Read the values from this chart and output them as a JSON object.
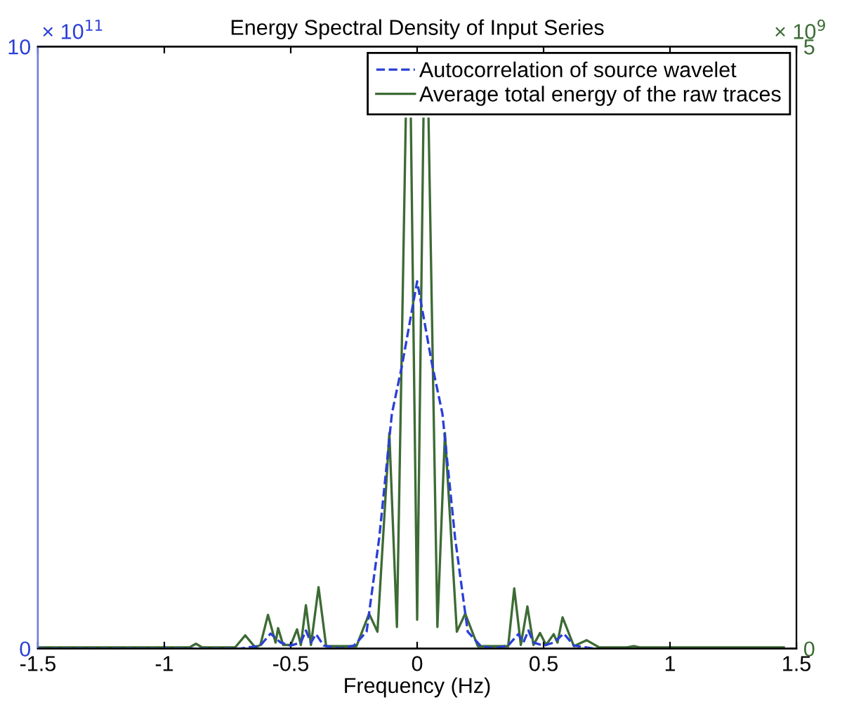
{
  "chart_data": {
    "type": "line",
    "title": "Energy Spectral Density of Input Series",
    "xlabel": "Frequency (Hz)",
    "xlim": [
      -1.5,
      1.5
    ],
    "xticks": [
      -1.5,
      -1,
      -0.5,
      0,
      0.5,
      1,
      1.5
    ],
    "ylim": [
      0,
      10
    ],
    "yticks": [
      0,
      10
    ],
    "y2lim": [
      0,
      5
    ],
    "y2ticks": [
      0,
      5
    ],
    "annotations": [
      "× 10$^{11}$",
      "× 10$^{9}$"
    ],
    "legend": "top right",
    "grid": false,
    "series": [
      {
        "name": "Autocorrelation of source wavelet",
        "color": "#2a3fd6",
        "line_style": "dashed",
        "x": [
          -1.5,
          -0.7,
          -0.62,
          -0.58,
          -0.54,
          -0.5,
          -0.46,
          -0.44,
          -0.42,
          -0.4,
          -0.37,
          -0.3,
          -0.25,
          -0.2,
          -0.15,
          -0.1,
          -0.06,
          0,
          0.06,
          0.1,
          0.15,
          0.2,
          0.25,
          0.3,
          0.36,
          0.4,
          0.42,
          0.44,
          0.46,
          0.5,
          0.54,
          0.58,
          0.62,
          0.7
        ],
        "values": [
          0,
          0,
          0.05,
          0.25,
          0.1,
          0.05,
          0.1,
          0.3,
          0.1,
          0.24,
          0.05,
          0,
          0.05,
          0.28,
          1.84,
          3.9,
          4.7,
          6.1,
          4.7,
          3.9,
          1.84,
          0.28,
          0.05,
          0,
          0.05,
          0.24,
          0.1,
          0.3,
          0.1,
          0.05,
          0.1,
          0.25,
          0.05,
          0
        ]
      },
      {
        "name": "Average total energy of the raw traces",
        "color": "#3d6b35",
        "line_style": "solid",
        "axis": "y2",
        "x": [
          -1.5,
          -0.9,
          -0.875,
          -0.85,
          -0.72,
          -0.68,
          -0.64,
          -0.62,
          -0.59,
          -0.56,
          -0.55,
          -0.53,
          -0.5,
          -0.475,
          -0.46,
          -0.44,
          -0.42,
          -0.39,
          -0.36,
          -0.3,
          -0.24,
          -0.19,
          -0.157,
          -0.11,
          -0.08,
          -0.045,
          -0.035,
          -0.025,
          0,
          0.025,
          0.035,
          0.045,
          0.08,
          0.11,
          0.157,
          0.19,
          0.24,
          0.3,
          0.36,
          0.384,
          0.41,
          0.436,
          0.46,
          0.486,
          0.51,
          0.54,
          0.555,
          0.575,
          0.62,
          0.67,
          0.72,
          0.83,
          0.857,
          0.88,
          1.45
        ],
        "values": [
          0.01,
          0.01,
          0.04,
          0.01,
          0.01,
          0.11,
          0.01,
          0.03,
          0.28,
          0.05,
          0.17,
          0.03,
          0.03,
          0.16,
          0.03,
          0.36,
          0.03,
          0.51,
          0.02,
          0.02,
          0.02,
          0.29,
          0.14,
          1.79,
          0.18,
          4.4,
          null,
          4.4,
          0.24,
          4.4,
          null,
          4.4,
          0.18,
          1.79,
          0.14,
          0.29,
          0.02,
          0.02,
          0.02,
          0.5,
          0.03,
          0.35,
          0.03,
          0.13,
          0.03,
          0.12,
          0.05,
          0.26,
          0.02,
          0.07,
          0.01,
          0.01,
          0.02,
          0.01,
          0.01
        ]
      }
    ]
  }
}
